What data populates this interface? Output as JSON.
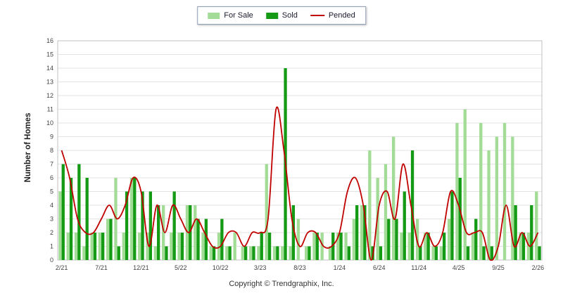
{
  "legend": {
    "items": [
      {
        "label": "For Sale",
        "type": "bar"
      },
      {
        "label": "Sold",
        "type": "bar"
      },
      {
        "label": "Pended",
        "type": "line"
      }
    ]
  },
  "footer": {
    "copyright": "Copyright © Trendgraphix, Inc."
  },
  "colors": {
    "for_sale": "#A2DC96",
    "sold": "#149A14",
    "pended": "#C00000",
    "grid": "#E3E3E3",
    "axis": "#C0C0C0"
  },
  "chart_data": {
    "type": "bar",
    "subtype": "grouped-bars-with-line",
    "title": "",
    "xlabel": "",
    "ylabel": "Number of Homes",
    "ylim": [
      0,
      16
    ],
    "ytick_step": 1,
    "x_label_interval": 5,
    "grid": true,
    "legend_position": "top",
    "categories": [
      "2/21",
      "3/21",
      "4/21",
      "5/21",
      "6/21",
      "7/21",
      "8/21",
      "9/21",
      "10/21",
      "11/21",
      "12/21",
      "1/22",
      "2/22",
      "3/22",
      "4/22",
      "5/22",
      "6/22",
      "7/22",
      "8/22",
      "9/22",
      "10/22",
      "11/22",
      "12/22",
      "1/23",
      "2/23",
      "3/23",
      "4/23",
      "5/23",
      "6/23",
      "7/23",
      "8/23",
      "9/23",
      "10/23",
      "11/23",
      "12/23",
      "1/24",
      "2/24",
      "3/24",
      "4/24",
      "5/24",
      "6/24",
      "7/24",
      "8/24",
      "9/24",
      "10/24",
      "11/24",
      "12/24",
      "1/25",
      "2/25",
      "3/25",
      "4/25",
      "5/25",
      "6/25",
      "7/25",
      "8/25",
      "9/25",
      "10/25",
      "11/25",
      "12/25",
      "1/26",
      "2/26"
    ],
    "series": [
      {
        "name": "For Sale",
        "type": "bar",
        "color": "#A2DC96",
        "values": [
          5,
          2,
          2,
          1,
          2,
          2,
          3,
          6,
          2,
          6,
          2,
          2,
          1,
          4,
          2,
          2,
          4,
          4,
          2,
          1,
          2,
          1,
          2,
          1,
          1,
          1,
          7,
          1,
          1,
          1,
          3,
          1,
          2,
          2,
          1,
          2,
          2,
          3,
          4,
          8,
          6,
          7,
          9,
          2,
          2,
          3,
          2,
          1,
          1,
          3,
          10,
          11,
          2,
          10,
          8,
          9,
          10,
          9,
          2,
          2,
          5
        ]
      },
      {
        "name": "Sold",
        "type": "bar",
        "color": "#149A14",
        "values": [
          7,
          6,
          7,
          6,
          2,
          2,
          3,
          1,
          5,
          6,
          5,
          5,
          4,
          1,
          5,
          2,
          4,
          3,
          3,
          1,
          3,
          1,
          0,
          1,
          1,
          2,
          2,
          1,
          14,
          4,
          0,
          1,
          2,
          0,
          2,
          2,
          1,
          4,
          4,
          1,
          1,
          3,
          3,
          5,
          8,
          1,
          2,
          1,
          2,
          5,
          6,
          1,
          3,
          1,
          1,
          0,
          0,
          4,
          2,
          4,
          1
        ]
      },
      {
        "name": "Pended",
        "type": "line",
        "color": "#C00000",
        "values": [
          8,
          6,
          3,
          2,
          2,
          3,
          4,
          3,
          4,
          6,
          5,
          1,
          4,
          2,
          4,
          3,
          2,
          3,
          2,
          1,
          1,
          2,
          2,
          1,
          2,
          2,
          3,
          11,
          8,
          3,
          1,
          2,
          2,
          1,
          1,
          2,
          5,
          6,
          4,
          0,
          4,
          5,
          3,
          7,
          4,
          1,
          2,
          1,
          2,
          5,
          4,
          2,
          2,
          2,
          0,
          1,
          4,
          1,
          2,
          1,
          2
        ]
      }
    ]
  }
}
